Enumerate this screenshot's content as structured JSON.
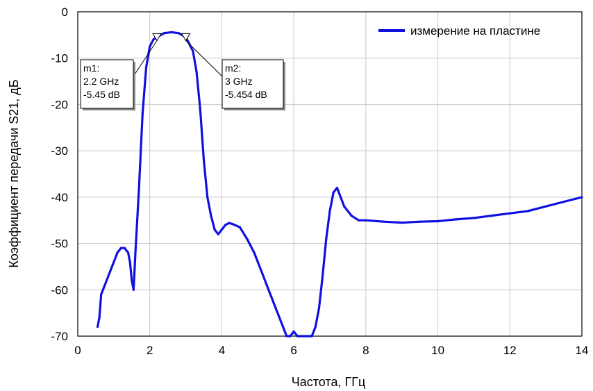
{
  "chart_data": {
    "type": "line",
    "xlabel": "Частота, ГГц",
    "ylabel": "Коэффициент передачи S21, дБ",
    "xlim": [
      0,
      14
    ],
    "ylim": [
      -70,
      0
    ],
    "x_ticks": [
      "0",
      "2",
      "4",
      "6",
      "8",
      "10",
      "12",
      "14"
    ],
    "y_ticks": [
      "0",
      "-10",
      "-20",
      "-30",
      "-40",
      "-50",
      "-60",
      "-70"
    ],
    "grid": true,
    "legend_position": "top-right",
    "colors": {
      "series": "#1010e0"
    },
    "series": [
      {
        "name": "измерение на пластине",
        "x": [
          0.55,
          0.6,
          0.65,
          0.7,
          0.8,
          0.9,
          1.0,
          1.1,
          1.2,
          1.3,
          1.4,
          1.45,
          1.5,
          1.55,
          1.6,
          1.7,
          1.8,
          1.9,
          2.0,
          2.1,
          2.2,
          2.4,
          2.6,
          2.8,
          3.0,
          3.2,
          3.3,
          3.4,
          3.5,
          3.6,
          3.7,
          3.8,
          3.9,
          4.0,
          4.1,
          4.2,
          4.3,
          4.5,
          4.7,
          4.9,
          5.1,
          5.3,
          5.5,
          5.6,
          5.7,
          5.8,
          5.9,
          6.0,
          6.1,
          6.3,
          6.5,
          6.6,
          6.7,
          6.8,
          6.9,
          7.0,
          7.1,
          7.2,
          7.3,
          7.4,
          7.6,
          7.8,
          8.0,
          8.5,
          9.0,
          9.5,
          10.0,
          10.5,
          11.0,
          11.5,
          12.0,
          12.5,
          13.0,
          13.5,
          14.0
        ],
        "y": [
          -68,
          -66,
          -61,
          -60,
          -58,
          -56,
          -54,
          -52,
          -51,
          -51,
          -52,
          -54,
          -58,
          -60,
          -52,
          -38,
          -22,
          -12,
          -7.5,
          -6,
          -5.45,
          -4.6,
          -4.4,
          -4.6,
          -5.45,
          -8.5,
          -13,
          -21,
          -32,
          -40,
          -44,
          -47,
          -48,
          -47,
          -46,
          -45.6,
          -45.8,
          -46.5,
          -49,
          -52,
          -56,
          -60,
          -64,
          -66,
          -68,
          -70,
          -70,
          -69,
          -70,
          -70,
          -70,
          -68,
          -64,
          -57,
          -49,
          -43,
          -39,
          -38,
          -40,
          -42,
          -44,
          -45,
          -45,
          -45.3,
          -45.5,
          -45.3,
          -45.2,
          -44.8,
          -44.5,
          -44,
          -43.5,
          -43,
          -42,
          -41,
          -40
        ]
      }
    ],
    "markers": [
      {
        "label": "m1:",
        "freq": "2.2 GHz",
        "level": "-5.45 dB",
        "x": 2.2,
        "y": -5.45
      },
      {
        "label": "m2:",
        "freq": "3 GHz",
        "level": "-5.454 dB",
        "x": 3.0,
        "y": -5.454
      }
    ]
  }
}
